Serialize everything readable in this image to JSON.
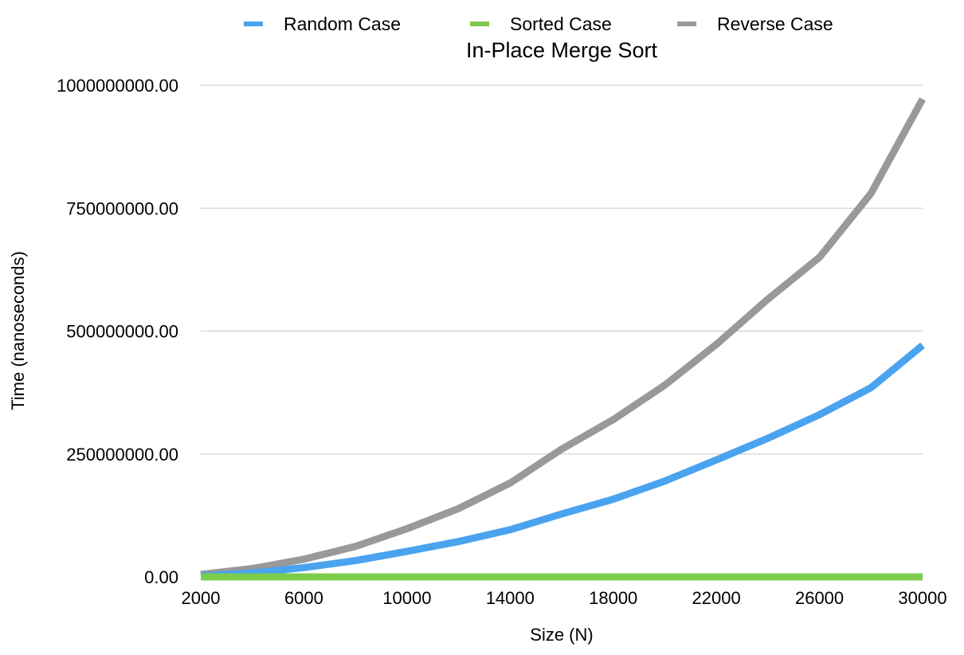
{
  "chart_data": {
    "type": "line",
    "title": "In-Place Merge Sort",
    "xlabel": "Size (N)",
    "ylabel": "Time (nanoseconds)",
    "x": [
      2000,
      4000,
      6000,
      8000,
      10000,
      12000,
      14000,
      16000,
      18000,
      20000,
      22000,
      24000,
      26000,
      28000,
      30000
    ],
    "xticks": [
      "2000",
      "6000",
      "10000",
      "14000",
      "18000",
      "22000",
      "26000",
      "30000"
    ],
    "xtick_values": [
      2000,
      6000,
      10000,
      14000,
      18000,
      22000,
      26000,
      30000
    ],
    "xlim": [
      2000,
      30000
    ],
    "yticks": [
      "0.00",
      "250000000.00",
      "500000000.00",
      "750000000.00",
      "1000000000.00"
    ],
    "ytick_values": [
      0,
      250000000,
      500000000,
      750000000,
      1000000000
    ],
    "ylim": [
      0,
      1000000000
    ],
    "grid": true,
    "legend_position": "top",
    "series": [
      {
        "name": "Random Case",
        "color": "#4aa3ef",
        "values": [
          2000000,
          8000000,
          19000000,
          33000000,
          52000000,
          72000000,
          96000000,
          128000000,
          158000000,
          195000000,
          238000000,
          282000000,
          330000000,
          385000000,
          471000000
        ]
      },
      {
        "name": "Sorted Case",
        "color": "#7ccc4e",
        "values": [
          0,
          0,
          0,
          0,
          0,
          0,
          0,
          0,
          0,
          0,
          0,
          0,
          0,
          0,
          0
        ]
      },
      {
        "name": "Reverse Case",
        "color": "#999999",
        "values": [
          5000000,
          17000000,
          36000000,
          62000000,
          98000000,
          139000000,
          191000000,
          260000000,
          320000000,
          390000000,
          473000000,
          565000000,
          650000000,
          780000000,
          972000000
        ]
      }
    ]
  }
}
